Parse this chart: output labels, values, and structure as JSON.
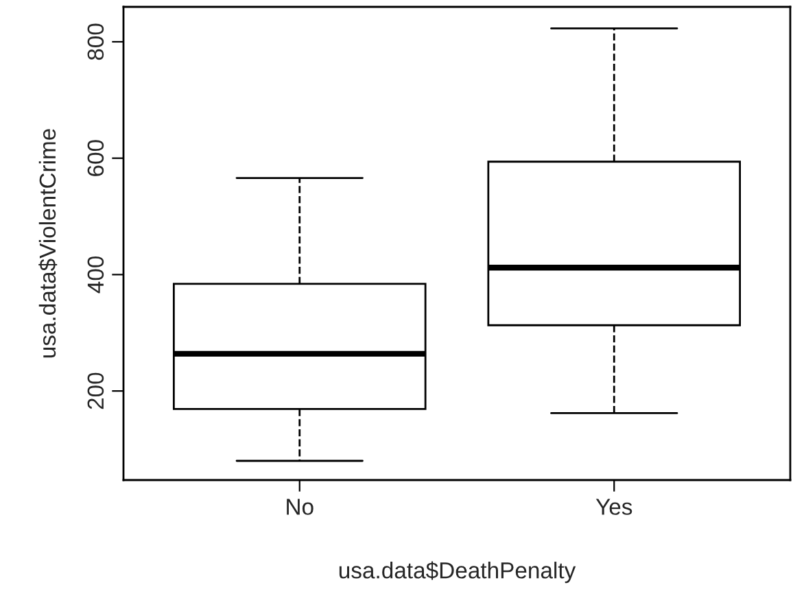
{
  "chart_data": {
    "type": "box",
    "xlabel": "usa.data$DeathPenalty",
    "ylabel": "usa.data$ViolentCrime",
    "categories": [
      "No",
      "Yes"
    ],
    "boxes": [
      {
        "low": 80,
        "q1": 169,
        "median": 264,
        "q3": 384,
        "high": 566
      },
      {
        "low": 162,
        "q1": 313,
        "median": 412,
        "q3": 594,
        "high": 823
      }
    ],
    "ylim": [
      47,
      860
    ],
    "yticks": [
      200,
      400,
      600,
      800
    ],
    "grid": false,
    "legend": false
  }
}
